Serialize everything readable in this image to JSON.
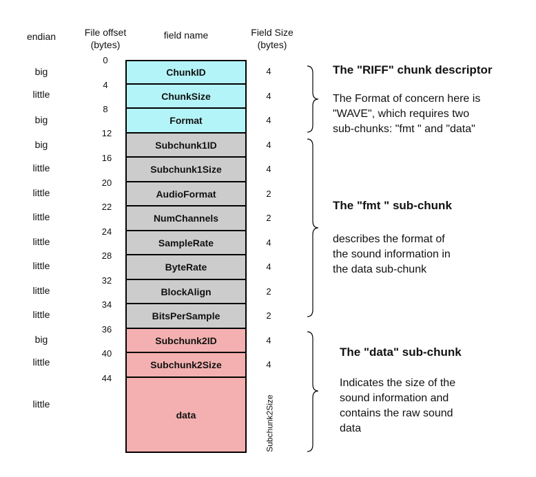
{
  "headers": {
    "endian": "endian",
    "offset_line1": "File offset",
    "offset_line2": "(bytes)",
    "field_name": "field name",
    "size_line1": "Field Size",
    "size_line2": "(bytes)"
  },
  "offsets": [
    "0",
    "4",
    "8",
    "12",
    "16",
    "20",
    "22",
    "24",
    "28",
    "32",
    "34",
    "36",
    "40",
    "44"
  ],
  "fields": [
    {
      "name": "ChunkID",
      "endian": "big",
      "size": "4",
      "group": "riff"
    },
    {
      "name": "ChunkSize",
      "endian": "little",
      "size": "4",
      "group": "riff"
    },
    {
      "name": "Format",
      "endian": "big",
      "size": "4",
      "group": "riff"
    },
    {
      "name": "Subchunk1ID",
      "endian": "big",
      "size": "4",
      "group": "fmt"
    },
    {
      "name": "Subchunk1Size",
      "endian": "little",
      "size": "4",
      "group": "fmt"
    },
    {
      "name": "AudioFormat",
      "endian": "little",
      "size": "2",
      "group": "fmt"
    },
    {
      "name": "NumChannels",
      "endian": "little",
      "size": "2",
      "group": "fmt"
    },
    {
      "name": "SampleRate",
      "endian": "little",
      "size": "4",
      "group": "fmt"
    },
    {
      "name": "ByteRate",
      "endian": "little",
      "size": "4",
      "group": "fmt"
    },
    {
      "name": "BlockAlign",
      "endian": "little",
      "size": "2",
      "group": "fmt"
    },
    {
      "name": "BitsPerSample",
      "endian": "little",
      "size": "2",
      "group": "fmt"
    },
    {
      "name": "Subchunk2ID",
      "endian": "big",
      "size": "4",
      "group": "data"
    },
    {
      "name": "Subchunk2Size",
      "endian": "little",
      "size": "4",
      "group": "data"
    },
    {
      "name": "data",
      "endian": "little",
      "size": "Subchunk2Size",
      "group": "data"
    }
  ],
  "sections": {
    "riff": {
      "title": "The \"RIFF\" chunk descriptor",
      "desc": [
        "The Format of concern here is",
        "\"WAVE\", which requires two",
        "sub-chunks: \"fmt \" and \"data\""
      ]
    },
    "fmt": {
      "title": "The \"fmt \" sub-chunk",
      "desc": [
        "describes the format of",
        "the sound information in",
        "the data sub-chunk"
      ]
    },
    "data": {
      "title": "The \"data\" sub-chunk",
      "desc": [
        "Indicates the size of the",
        "sound information and",
        "contains the raw sound",
        "data"
      ]
    }
  },
  "colors": {
    "riff": "#b3f4f8",
    "fmt": "#cccccc",
    "data": "#f4b0b0"
  }
}
